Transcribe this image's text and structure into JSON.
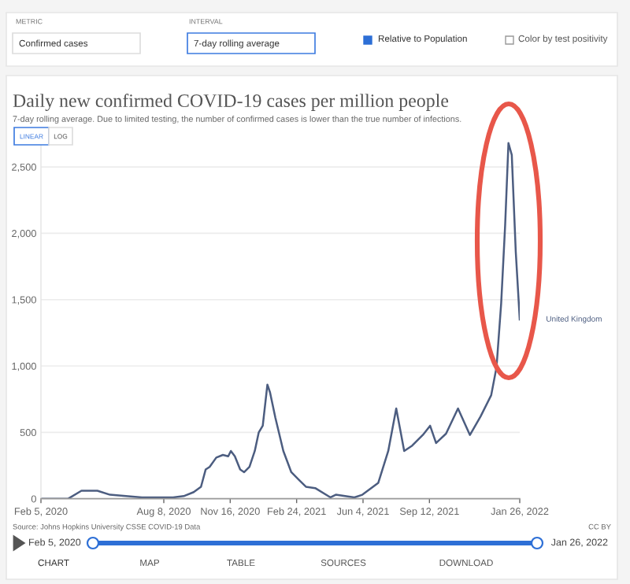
{
  "chart_data": {
    "type": "line",
    "title": "Daily new confirmed COVID-19 cases per million people",
    "subtitle": "7-day rolling average. Due to limited testing, the number of confirmed cases is lower than the true number of infections.",
    "x": [
      "2020-02-05",
      "2020-03-17",
      "2020-04-06",
      "2020-04-30",
      "2020-05-19",
      "2020-06-12",
      "2020-07-06",
      "2020-08-22",
      "2020-09-07",
      "2020-09-22",
      "2020-10-03",
      "2020-10-10",
      "2020-10-16",
      "2020-10-26",
      "2020-11-05",
      "2020-11-13",
      "2020-11-17",
      "2020-11-23",
      "2020-12-01",
      "2020-12-07",
      "2020-12-15",
      "2020-12-23",
      "2020-12-29",
      "2021-01-04",
      "2021-01-11",
      "2021-01-15",
      "2021-01-23",
      "2021-02-04",
      "2021-02-16",
      "2021-02-28",
      "2021-03-10",
      "2021-03-24",
      "2021-04-16",
      "2021-04-24",
      "2021-05-22",
      "2021-06-03",
      "2021-06-27",
      "2021-07-12",
      "2021-07-24",
      "2021-08-05",
      "2021-08-17",
      "2021-09-02",
      "2021-09-13",
      "2021-09-22",
      "2021-10-07",
      "2021-10-25",
      "2021-11-12",
      "2021-11-28",
      "2021-12-14",
      "2021-12-22",
      "2021-12-29",
      "2022-01-04",
      "2022-01-09",
      "2022-01-14",
      "2022-01-20",
      "2022-01-26"
    ],
    "series": [
      {
        "name": "United Kingdom",
        "color": "#4c5d80",
        "values": [
          0,
          0,
          60,
          60,
          30,
          20,
          10,
          10,
          20,
          50,
          90,
          220,
          240,
          310,
          330,
          320,
          360,
          320,
          220,
          200,
          240,
          360,
          500,
          550,
          860,
          800,
          610,
          360,
          200,
          140,
          90,
          80,
          10,
          30,
          10,
          30,
          120,
          360,
          680,
          360,
          400,
          480,
          550,
          420,
          490,
          680,
          480,
          620,
          780,
          990,
          1470,
          2060,
          2680,
          2590,
          1860,
          1350
        ]
      }
    ],
    "xlim": [
      "2020-02-05",
      "2022-01-26"
    ],
    "xticks": [
      {
        "value": "2020-02-05",
        "label": "Feb 5, 2020"
      },
      {
        "value": "2020-08-08",
        "label": "Aug 8, 2020"
      },
      {
        "value": "2020-11-16",
        "label": "Nov 16, 2020"
      },
      {
        "value": "2021-02-24",
        "label": "Feb 24, 2021"
      },
      {
        "value": "2021-06-04",
        "label": "Jun 4, 2021"
      },
      {
        "value": "2021-09-12",
        "label": "Sep 12, 2021"
      },
      {
        "value": "2022-01-26",
        "label": "Jan 26, 2022"
      }
    ],
    "ylim": [
      0,
      2750
    ],
    "yticks": [
      0,
      {
        "value": 500,
        "label": "500"
      },
      {
        "value": 1000,
        "label": "1,000"
      },
      {
        "value": 1500,
        "label": "1,500"
      },
      {
        "value": 2000,
        "label": "2,000"
      },
      {
        "value": 2500,
        "label": "2,500"
      }
    ],
    "grid": "y",
    "legend": false,
    "marker": "none",
    "line_style": "solid",
    "annotations": [
      "METRIC",
      "Confirmed cases",
      "INTERVAL",
      "7-day rolling average",
      "Relative to Population",
      "Color by test positivity",
      "LINEAR",
      "LOG",
      "Source: Johns Hopkins University CSSE COVID-19 Data",
      "CC BY",
      "Feb 5, 2020",
      "Jan 26, 2022",
      "CHART",
      "MAP",
      "TABLE",
      "SOURCES",
      "DOWNLOAD"
    ]
  }
}
